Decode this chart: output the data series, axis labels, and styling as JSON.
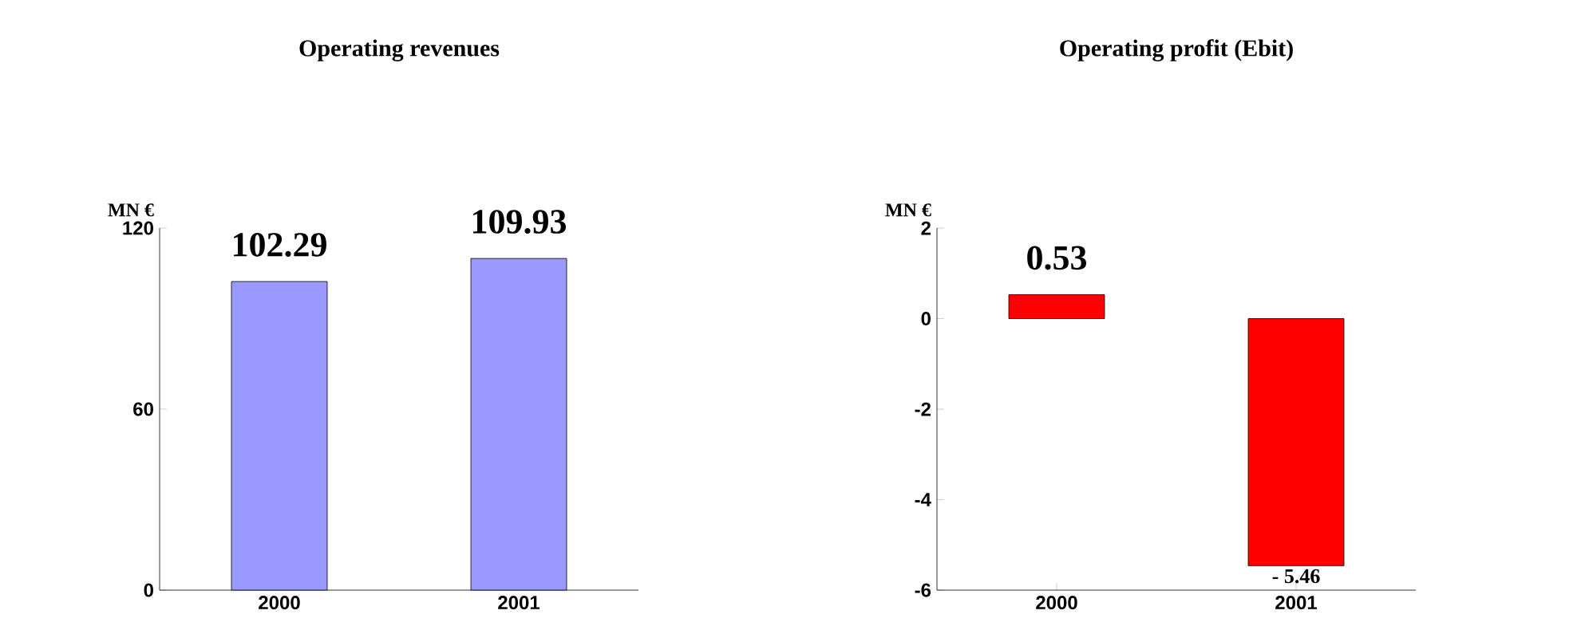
{
  "chart_data": [
    {
      "type": "bar",
      "title": "Operating revenues",
      "ylabel": "MN €",
      "categories": [
        "2000",
        "2001"
      ],
      "values": [
        102.29,
        109.93
      ],
      "value_labels": [
        "102.29",
        "109.93"
      ],
      "color": "#9999ff",
      "ylim": [
        0,
        120
      ],
      "yticks": [
        0,
        60,
        120
      ]
    },
    {
      "type": "bar",
      "title": "Operating profit (Ebit)",
      "ylabel": "MN €",
      "categories": [
        "2000",
        "2001"
      ],
      "values": [
        0.53,
        -5.46
      ],
      "value_labels": [
        "0.53",
        "- 5.46"
      ],
      "color": "#ff0000",
      "ylim": [
        -6,
        2
      ],
      "yticks": [
        -6,
        -4,
        -2,
        0,
        2
      ]
    }
  ]
}
